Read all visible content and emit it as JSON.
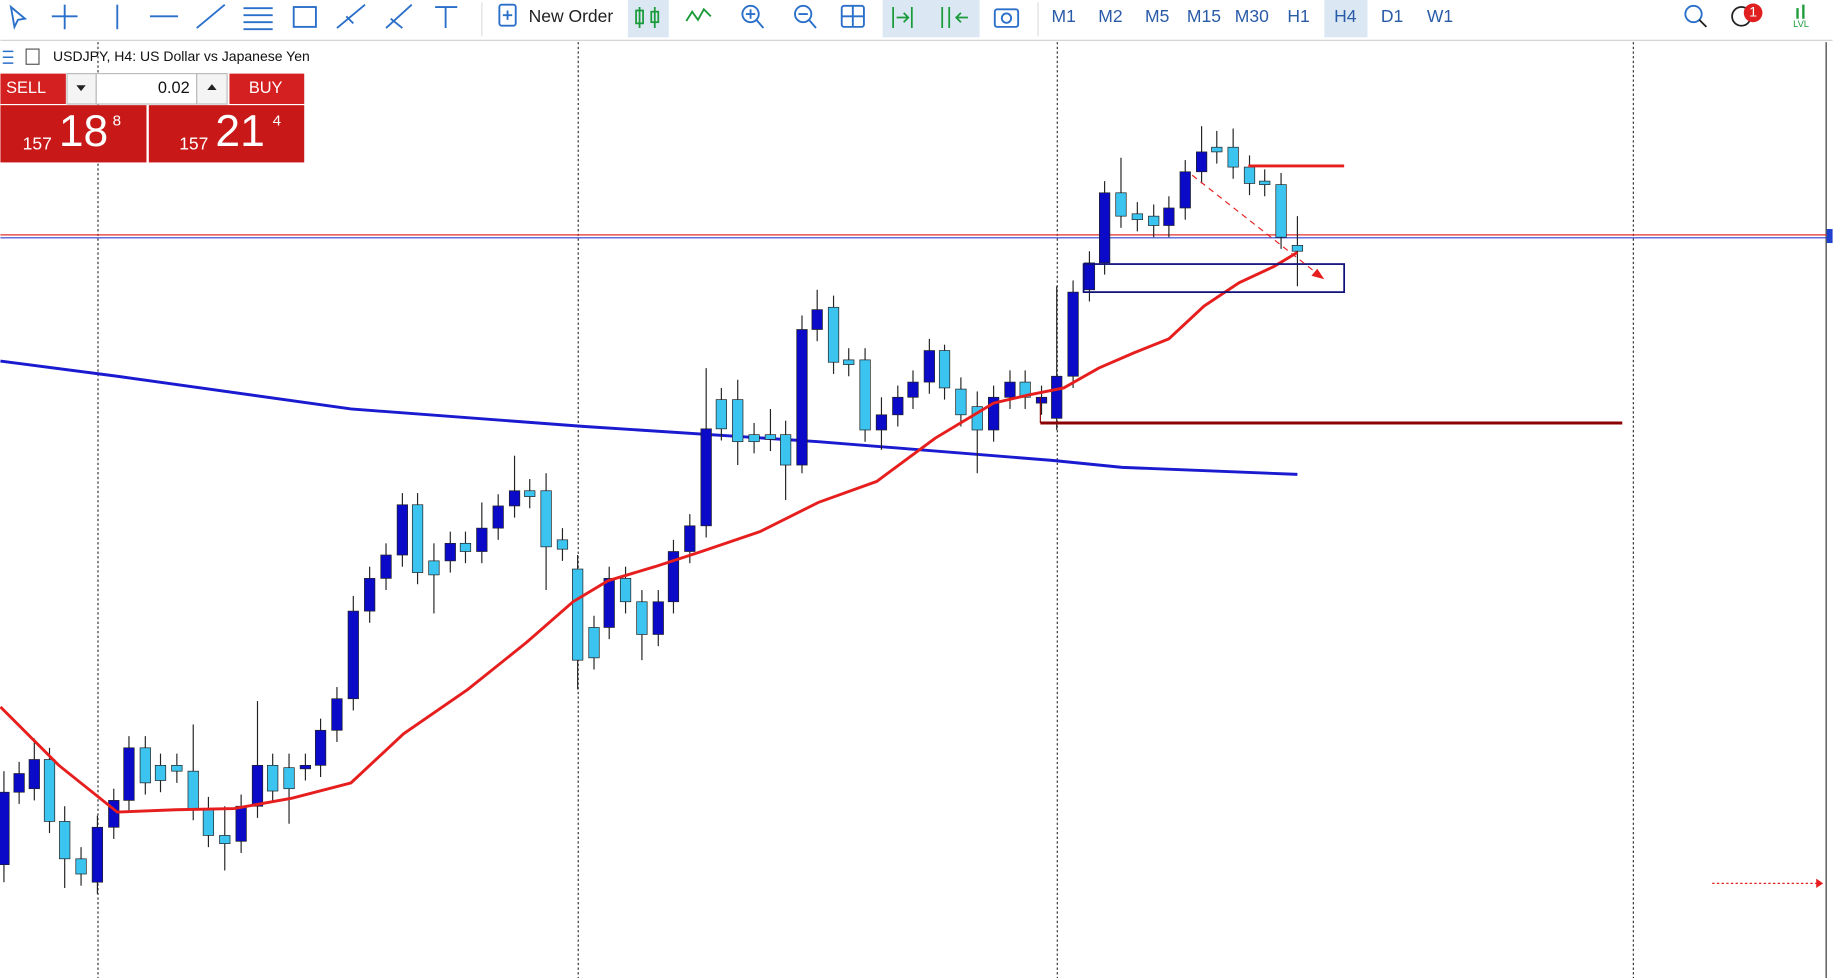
{
  "toolbar": {
    "new_order": "New Order",
    "timeframes": [
      "M1",
      "M2",
      "M5",
      "M15",
      "M30",
      "H1",
      "H4",
      "D1",
      "W1"
    ],
    "notification_count": "1",
    "level_icon": "LVL"
  },
  "chart": {
    "header": "USDJPY, H4:  US Dollar vs Japanese Yen"
  },
  "trade_panel": {
    "sell": "SELL",
    "buy": "BUY",
    "volume": "0.02",
    "sell_price": {
      "big_figure": "157",
      "pips": "18",
      "fraction": "8"
    },
    "buy_price": {
      "big_figure": "157",
      "pips": "21",
      "fraction": "4"
    }
  }
}
